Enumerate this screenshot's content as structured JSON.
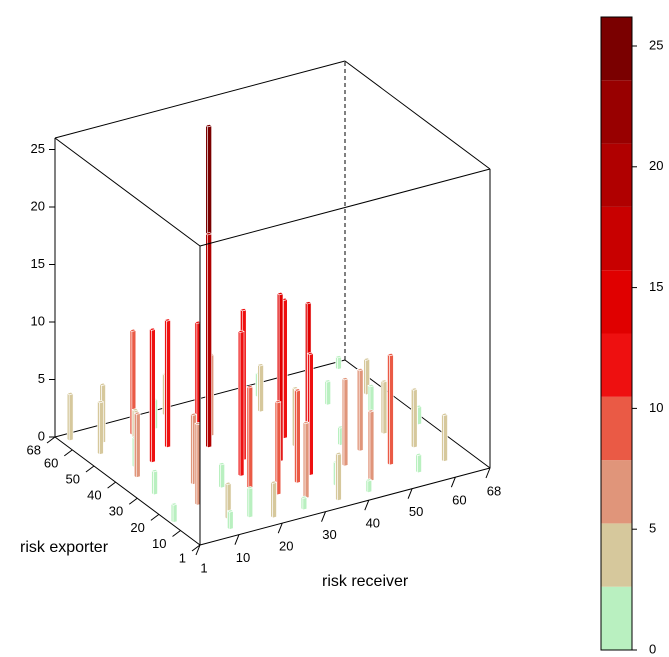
{
  "chart_data": {
    "type": "hist3d",
    "xlabel": "risk receiver",
    "ylabel": "risk exporter",
    "xlim": [
      1,
      68
    ],
    "ylim": [
      1,
      68
    ],
    "zlim": [
      0,
      26
    ],
    "xticks": [
      1,
      10,
      20,
      30,
      40,
      50,
      60,
      68
    ],
    "yticks": [
      1,
      10,
      20,
      30,
      40,
      50,
      60,
      68
    ],
    "zticks": [
      0,
      5,
      10,
      15,
      20,
      25
    ],
    "bars": {
      "x": [
        30,
        25,
        34,
        20,
        28,
        38,
        33,
        24,
        18,
        40,
        36,
        12,
        15,
        22,
        26,
        44,
        52,
        50,
        45,
        55,
        48,
        60,
        58,
        62,
        10,
        8,
        5,
        3,
        6,
        14,
        30,
        35,
        20,
        42,
        50,
        64,
        25,
        12,
        40,
        32,
        28,
        16,
        45,
        55,
        60,
        10,
        5,
        2,
        38,
        20,
        48,
        65,
        35,
        18,
        8,
        42,
        55,
        66,
        27,
        13
      ],
      "y": [
        55,
        45,
        30,
        40,
        35,
        25,
        45,
        28,
        50,
        40,
        20,
        45,
        60,
        20,
        15,
        20,
        15,
        25,
        10,
        35,
        45,
        20,
        30,
        10,
        20,
        60,
        55,
        65,
        40,
        30,
        10,
        5,
        5,
        55,
        60,
        50,
        65,
        10,
        35,
        18,
        50,
        8,
        62,
        50,
        40,
        5,
        30,
        15,
        12,
        60,
        30,
        65,
        65,
        25,
        45,
        5,
        8,
        30,
        5,
        55
      ],
      "values": [
        26,
        18.5,
        14.5,
        12,
        13,
        14,
        11,
        12.5,
        11,
        12,
        10.5,
        11.5,
        9,
        9,
        8,
        7.5,
        9.5,
        7,
        6,
        5,
        6,
        5,
        4.5,
        4,
        7,
        5,
        4.5,
        4,
        5.5,
        6,
        6.5,
        4,
        3,
        4,
        3,
        3,
        3.5,
        3,
        5,
        8,
        7,
        2.5,
        2,
        2,
        2.5,
        1.5,
        2,
        1.5,
        2,
        2.5,
        1.5,
        1,
        1.5,
        2,
        2.5,
        1,
        1.5,
        1.5,
        1,
        3
      ]
    },
    "colorbar": {
      "colors": [
        "#b9f0c0",
        "#d6c89c",
        "#e0957a",
        "#ea5a45",
        "#ee1010",
        "#e00000",
        "#c80000",
        "#b00000",
        "#980000",
        "#7a0000"
      ],
      "lim": [
        0,
        26.2
      ],
      "ticks": [
        0,
        5,
        10,
        15,
        20,
        25
      ]
    }
  }
}
